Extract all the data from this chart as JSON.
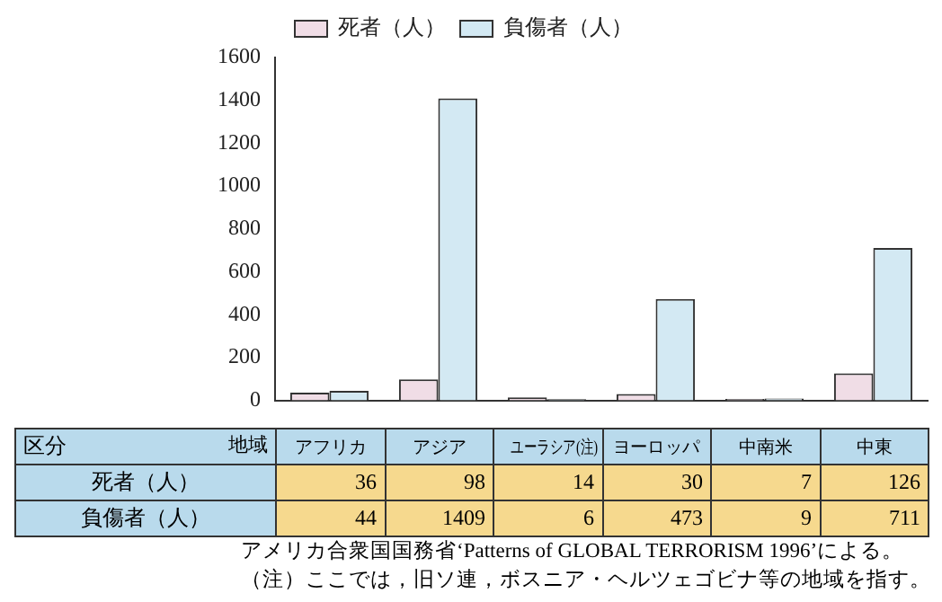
{
  "chart_data": {
    "type": "bar",
    "categories": [
      "アフリカ",
      "アジア",
      "ユーラシア(注)",
      "ヨーロッパ",
      "中南米",
      "中東"
    ],
    "series": [
      {
        "name": "死者（人）",
        "color": "#f0dde6",
        "values": [
          36,
          98,
          14,
          30,
          7,
          126
        ]
      },
      {
        "name": "負傷者（人）",
        "color": "#d3e9f3",
        "values": [
          44,
          1409,
          6,
          473,
          9,
          711
        ]
      }
    ],
    "ylim": [
      0,
      1600
    ],
    "yticks": [
      0,
      200,
      400,
      600,
      800,
      1000,
      1200,
      1400,
      1600
    ],
    "grid": false,
    "legend": "top",
    "data_labels": true,
    "annotations": [
      "区分",
      "地域",
      "アメリカ合衆国国務省‘Patterns of GLOBAL TERRORISM 1996’による。",
      "（注）ここでは，旧ソ連，ボスニア・ヘルツェゴビナ等の地域を指す。"
    ]
  }
}
